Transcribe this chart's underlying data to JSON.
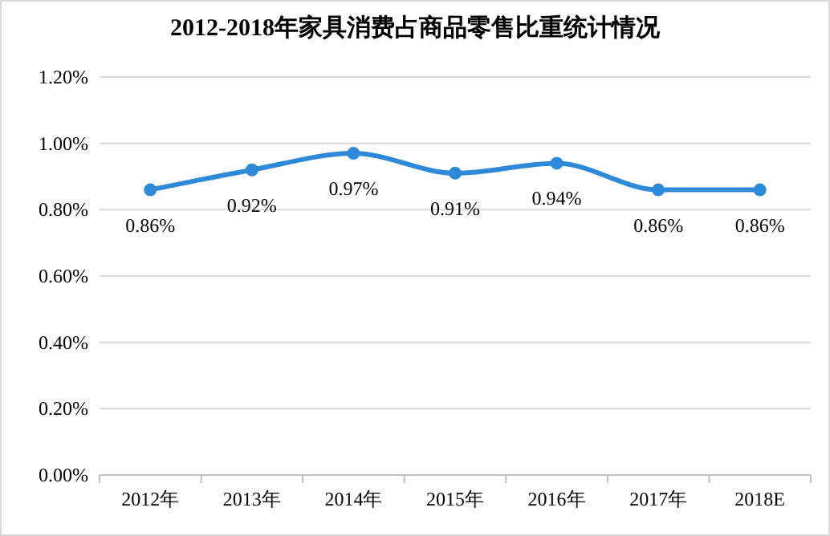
{
  "chart_data": {
    "type": "line",
    "title": "2012-2018年家具消费占商品零售比重统计情况",
    "categories": [
      "2012年",
      "2013年",
      "2014年",
      "2015年",
      "2016年",
      "2017年",
      "2018E"
    ],
    "series": [
      {
        "color": "#2e8ad8",
        "values": [
          0.86,
          0.92,
          0.97,
          0.91,
          0.94,
          0.86,
          0.86
        ],
        "value_labels": [
          "0.86%",
          "0.92%",
          "0.97%",
          "0.91%",
          "0.94%",
          "0.86%",
          "0.86%"
        ]
      }
    ],
    "ylim": [
      0,
      1.2
    ],
    "yticks": [
      {
        "value": 0,
        "label": "0.00%"
      },
      {
        "value": 0.2,
        "label": "0.20%"
      },
      {
        "value": 0.4,
        "label": "0.40%"
      },
      {
        "value": 0.6,
        "label": "0.60%"
      },
      {
        "value": 0.8,
        "label": "0.80%"
      },
      {
        "value": 1.0,
        "label": "1.00%"
      },
      {
        "value": 1.2,
        "label": "1.20%"
      }
    ],
    "grid": "y",
    "marker": "circle",
    "line_style": "solid"
  }
}
